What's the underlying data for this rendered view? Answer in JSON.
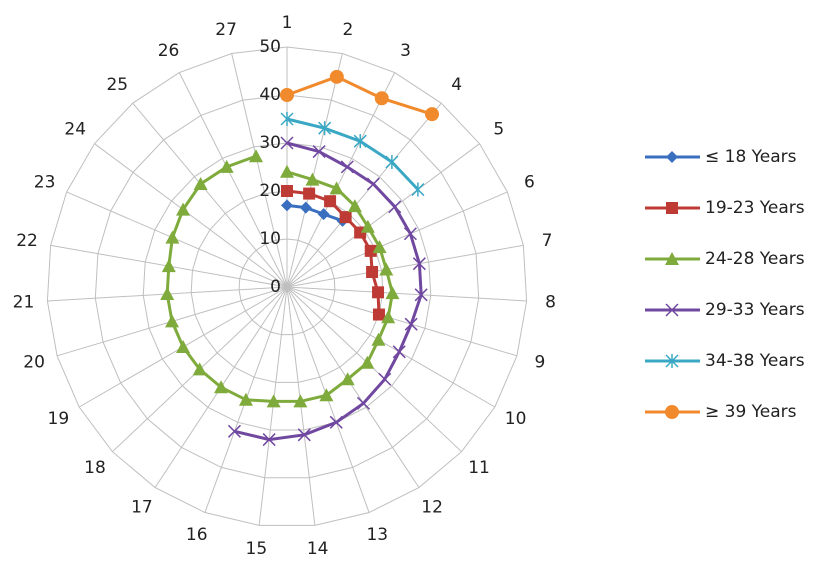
{
  "chart_data": {
    "type": "radar",
    "categories": [
      "1",
      "2",
      "3",
      "4",
      "5",
      "6",
      "7",
      "8",
      "9",
      "10",
      "11",
      "12",
      "13",
      "14",
      "15",
      "16",
      "17",
      "18",
      "19",
      "20",
      "21",
      "22",
      "23",
      "24",
      "25",
      "26",
      "27"
    ],
    "ylim": [
      0,
      50
    ],
    "yticks": [
      0,
      10,
      20,
      30,
      40,
      50
    ],
    "grid": true,
    "legend": "right",
    "series": [
      {
        "name": "≤ 18 Years",
        "color": "#3a6fbf",
        "marker": "diamond",
        "values": [
          17,
          17,
          17,
          18,
          null,
          null,
          null,
          null,
          null,
          null,
          null,
          null,
          null,
          null,
          null,
          null,
          null,
          null,
          null,
          null,
          null,
          null,
          null,
          null,
          null,
          null,
          null
        ]
      },
      {
        "name": "19-23 Years",
        "color": "#be3a35",
        "marker": "square",
        "values": [
          20,
          20,
          20,
          19,
          19,
          19,
          18,
          19,
          20,
          null,
          null,
          null,
          null,
          null,
          null,
          null,
          null,
          null,
          null,
          null,
          null,
          null,
          null,
          null,
          null,
          null,
          null
        ]
      },
      {
        "name": "24-28 Years",
        "color": "#7fab3c",
        "marker": "triangle",
        "values": [
          24,
          23,
          23,
          22,
          21,
          21,
          21,
          22,
          22,
          22,
          23,
          23,
          24,
          24,
          24,
          25,
          25,
          25,
          25,
          25,
          25,
          25,
          26,
          27,
          28,
          28,
          28
        ]
      },
      {
        "name": "29-33 Years",
        "color": "#7048a0",
        "marker": "x",
        "values": [
          30,
          29,
          28,
          28,
          28,
          28,
          28,
          28,
          27,
          27,
          28,
          29,
          30,
          31,
          32,
          32,
          null,
          null,
          null,
          null,
          null,
          null,
          null,
          null,
          null,
          null,
          null
        ]
      },
      {
        "name": "34-38 Years",
        "color": "#3aa8c4",
        "marker": "star",
        "values": [
          35,
          34,
          34,
          34,
          34,
          null,
          null,
          null,
          null,
          null,
          null,
          null,
          null,
          null,
          null,
          null,
          null,
          null,
          null,
          null,
          null,
          null,
          null,
          null,
          null,
          null,
          null
        ]
      },
      {
        "name": "≥ 39 Years",
        "color": "#f08a2c",
        "marker": "circle",
        "values": [
          40,
          45,
          44,
          47,
          null,
          null,
          null,
          null,
          null,
          null,
          null,
          null,
          null,
          null,
          null,
          null,
          null,
          null,
          null,
          null,
          null,
          null,
          null,
          null,
          null,
          null,
          null
        ]
      }
    ]
  }
}
